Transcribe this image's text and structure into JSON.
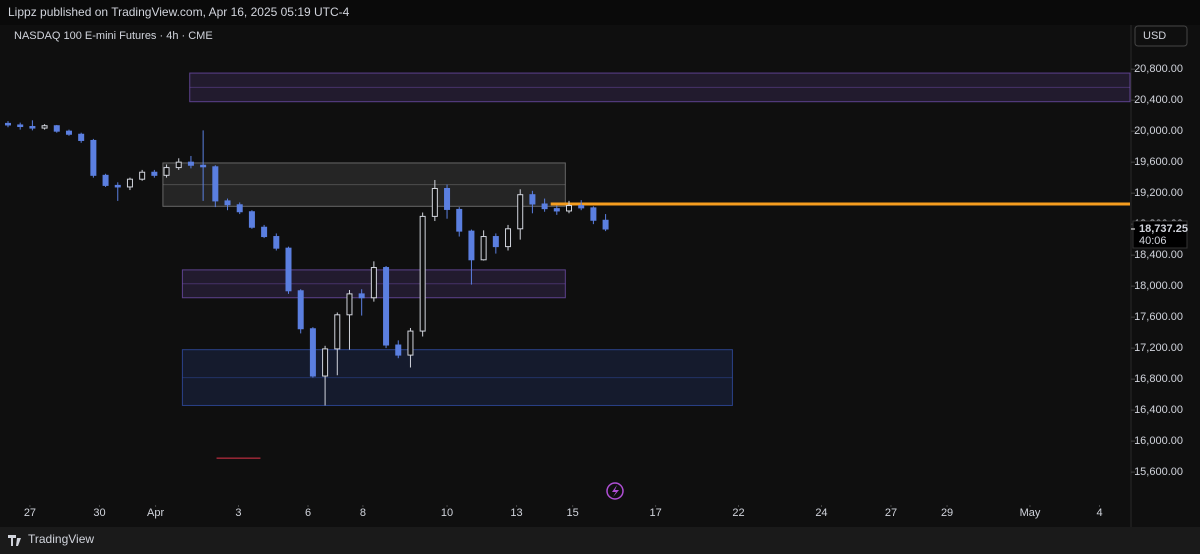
{
  "header": {
    "text": "Lippz published on TradingView.com, Apr 16, 2025 05:19 UTC-4"
  },
  "footer": {
    "brand": "TradingView"
  },
  "currency": "USD",
  "chart_data": {
    "type": "candlestick",
    "title": "NASDAQ 100 E-mini Futures · 4h · CME",
    "up_color": "#d1d4dc",
    "down_color": "#5b7fe0",
    "open": [
      20100,
      20080,
      20060,
      20040,
      20070,
      20000,
      19960,
      19880,
      19430,
      19300,
      19280,
      19380,
      19470,
      19430,
      19530,
      19600,
      19560,
      19540,
      19100,
      19050,
      18960,
      18760,
      18640,
      18490,
      17940,
      17450,
      16840,
      17190,
      17630,
      17900,
      17850,
      18240,
      17240,
      17110,
      17420,
      18900,
      19260,
      18990,
      18710,
      18340,
      18640,
      18510,
      18740,
      19180,
      19060,
      19000,
      18970,
      19040,
      19010,
      18850
    ],
    "high": [
      20130,
      20110,
      20140,
      20090,
      20080,
      20020,
      19980,
      19900,
      19450,
      19340,
      19400,
      19500,
      19500,
      19570,
      19650,
      19680,
      20010,
      19560,
      19130,
      19080,
      18980,
      18790,
      18680,
      18510,
      17960,
      17470,
      17230,
      17660,
      17950,
      17960,
      18320,
      18260,
      17300,
      17460,
      18950,
      19370,
      19310,
      19020,
      18730,
      18720,
      18680,
      18790,
      19250,
      19230,
      19130,
      19040,
      19100,
      19110,
      19030,
      18930
    ],
    "low": [
      20050,
      20020,
      20010,
      20020,
      19980,
      19940,
      19850,
      19400,
      19280,
      19100,
      19240,
      19360,
      19400,
      19400,
      19500,
      19520,
      19100,
      19020,
      18980,
      18930,
      18740,
      18620,
      18460,
      17900,
      17390,
      16820,
      16460,
      16850,
      17180,
      17620,
      17800,
      17200,
      17070,
      16950,
      17350,
      18840,
      18870,
      18640,
      18020,
      18330,
      18420,
      18460,
      18600,
      18940,
      18960,
      18920,
      18940,
      18980,
      18800,
      18710
    ],
    "close": [
      20080,
      20060,
      20040,
      20070,
      20000,
      19960,
      19880,
      19430,
      19300,
      19280,
      19380,
      19470,
      19430,
      19530,
      19600,
      19560,
      19540,
      19100,
      19050,
      18960,
      18760,
      18640,
      18490,
      17940,
      17450,
      16840,
      17190,
      17630,
      17900,
      17850,
      18240,
      17240,
      17110,
      17420,
      18900,
      19260,
      18990,
      18710,
      18340,
      18640,
      18510,
      18740,
      19180,
      19060,
      19000,
      18970,
      19040,
      19010,
      18850,
      18737.25
    ],
    "xlim": [
      0,
      92
    ],
    "xticks": [
      {
        "value": 1.8,
        "label": "27"
      },
      {
        "value": 7.5,
        "label": "30"
      },
      {
        "value": 12.1,
        "label": "Apr"
      },
      {
        "value": 18.9,
        "label": "3"
      },
      {
        "value": 24.6,
        "label": "6"
      },
      {
        "value": 29.1,
        "label": "8"
      },
      {
        "value": 36,
        "label": "10"
      },
      {
        "value": 41.7,
        "label": "13"
      },
      {
        "value": 46.3,
        "label": "15"
      },
      {
        "value": 53.1,
        "label": "17"
      },
      {
        "value": 59.9,
        "label": "22"
      },
      {
        "value": 66.7,
        "label": "24"
      },
      {
        "value": 72.4,
        "label": "27"
      },
      {
        "value": 77,
        "label": "29"
      },
      {
        "value": 83.8,
        "label": "May"
      },
      {
        "value": 89.5,
        "label": "4"
      }
    ],
    "ylim": [
      15240,
      21370
    ],
    "yticks": [
      {
        "value": 20800,
        "label": "20,800.00"
      },
      {
        "value": 20400,
        "label": "20,400.00"
      },
      {
        "value": 20000,
        "label": "20,000.00"
      },
      {
        "value": 19600,
        "label": "19,600.00"
      },
      {
        "value": 19200,
        "label": "19,200.00"
      },
      {
        "value": 18800,
        "label": "18,800.00"
      },
      {
        "value": 18400,
        "label": "18,400.00"
      },
      {
        "value": 18000,
        "label": "18,000.00"
      },
      {
        "value": 17600,
        "label": "17,600.00"
      },
      {
        "value": 17200,
        "label": "17,200.00"
      },
      {
        "value": 16800,
        "label": "16,800.00"
      },
      {
        "value": 16400,
        "label": "16,400.00"
      },
      {
        "value": 16000,
        "label": "16,000.00"
      },
      {
        "value": 15600,
        "label": "15,600.00"
      }
    ],
    "zones": [
      {
        "top": 20750,
        "bottom": 20380,
        "x_start": 14.9,
        "x_end": 92,
        "color": "#8a5fd6"
      },
      {
        "top": 19590,
        "bottom": 19030,
        "x_start": 12.7,
        "x_end": 45.7,
        "color": "#9a9a9a"
      },
      {
        "top": 18210,
        "bottom": 17850,
        "x_start": 14.3,
        "x_end": 45.7,
        "color": "#8a5fd6"
      },
      {
        "top": 17180,
        "bottom": 16460,
        "x_start": 14.3,
        "x_end": 59.4,
        "color": "#3b5fd0"
      }
    ],
    "levels": [
      {
        "value": 19060,
        "x_start": 44.5,
        "x_end": 92,
        "color": "#f59d1f"
      },
      {
        "value": 15780,
        "x_start": 17.1,
        "x_end": 20.7,
        "color": "#e0344a"
      }
    ],
    "last_price": {
      "value": 18737.25,
      "label": "18,737.25"
    },
    "countdown": "40:06"
  }
}
